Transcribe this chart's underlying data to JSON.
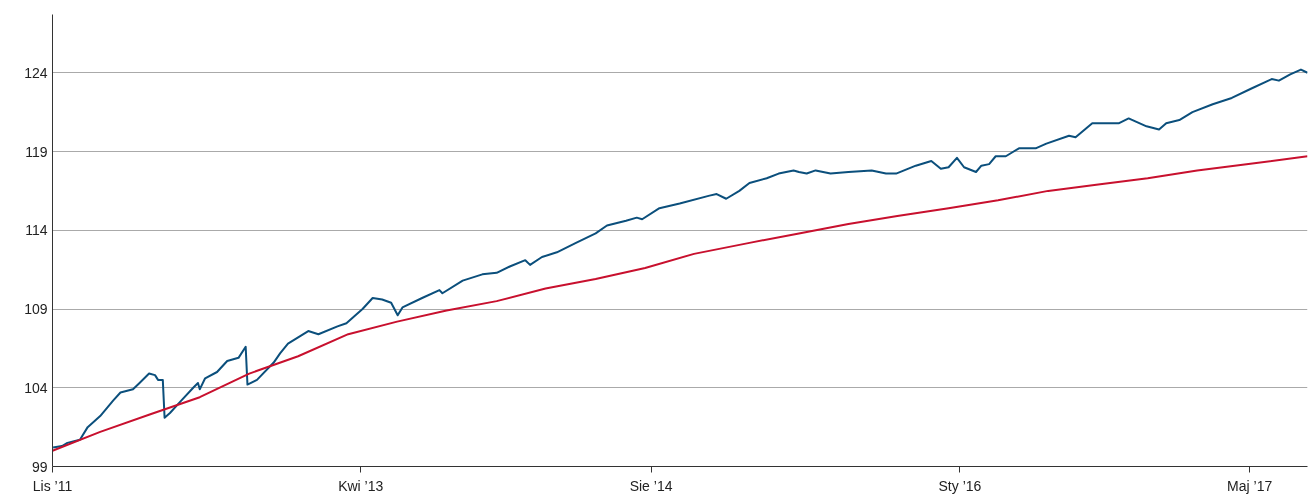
{
  "chart_data": {
    "type": "line",
    "xlim": [
      "2011-11-01",
      "2017-08-06"
    ],
    "ylim": [
      99,
      127.7
    ],
    "xticks": [
      {
        "value": "2011-11-01",
        "label": "Lis ’11"
      },
      {
        "value": "2013-04-01",
        "label": "Kwi ’13"
      },
      {
        "value": "2014-08-01",
        "label": "Sie ’14"
      },
      {
        "value": "2016-01-01",
        "label": "Sty ’16"
      },
      {
        "value": "2017-05-01",
        "label": "Maj ’17"
      }
    ],
    "yticks": [
      99,
      104,
      109,
      114,
      119,
      124
    ],
    "grid": "y",
    "marker": "none",
    "line_style": "solid",
    "series": [
      {
        "color": "#0b4f7c",
        "x": [
          "2011-11-02",
          "2011-11-17",
          "2011-11-26",
          "2011-12-17",
          "2011-12-30",
          "2012-01-20",
          "2012-02-11",
          "2012-02-23",
          "2012-03-15",
          "2012-03-26",
          "2012-04-11",
          "2012-04-21",
          "2012-04-26",
          "2012-05-04",
          "2012-05-07",
          "2012-05-16",
          "2012-06-02",
          "2012-06-24",
          "2012-07-02",
          "2012-07-05",
          "2012-07-14",
          "2012-08-03",
          "2012-08-20",
          "2012-09-08",
          "2012-09-20",
          "2012-09-23",
          "2012-10-09",
          "2012-11-06",
          "2012-11-17",
          "2012-11-30",
          "2012-12-17",
          "2013-01-03",
          "2013-01-20",
          "2013-02-21",
          "2013-03-08",
          "2013-04-04",
          "2013-04-21",
          "2013-05-07",
          "2013-05-22",
          "2013-06-02",
          "2013-06-10",
          "2013-07-13",
          "2013-08-11",
          "2013-08-16",
          "2013-09-19",
          "2013-10-22",
          "2013-11-15",
          "2013-12-07",
          "2014-01-02",
          "2014-01-10",
          "2014-01-30",
          "2014-02-24",
          "2014-03-28",
          "2014-04-30",
          "2014-05-19",
          "2014-06-20",
          "2014-07-08",
          "2014-07-17",
          "2014-08-15",
          "2014-09-18",
          "2014-11-07",
          "2014-11-19",
          "2014-12-05",
          "2014-12-27",
          "2015-01-13",
          "2015-02-11",
          "2015-03-03",
          "2015-03-28",
          "2015-04-06",
          "2015-04-19",
          "2015-05-04",
          "2015-05-29",
          "2015-06-28",
          "2015-08-06",
          "2015-08-30",
          "2015-09-16",
          "2015-10-19",
          "2015-11-14",
          "2015-11-30",
          "2015-12-13",
          "2015-12-27",
          "2016-01-08",
          "2016-01-28",
          "2016-02-06",
          "2016-02-19",
          "2016-03-01",
          "2016-03-18",
          "2016-04-09",
          "2016-05-07",
          "2016-05-25",
          "2016-07-02",
          "2016-07-13",
          "2016-08-10",
          "2016-09-24",
          "2016-10-10",
          "2016-11-09",
          "2016-11-30",
          "2016-12-12",
          "2017-01-03",
          "2017-01-25",
          "2017-02-28",
          "2017-04-01",
          "2017-05-04",
          "2017-06-07",
          "2017-06-19",
          "2017-07-08",
          "2017-07-26",
          "2017-08-06"
        ],
        "values": [
          100.2,
          100.3,
          100.5,
          100.7,
          101.5,
          102.2,
          103.2,
          103.7,
          103.9,
          104.3,
          104.9,
          104.8,
          104.5,
          104.5,
          102.1,
          102.4,
          103.1,
          104.0,
          104.3,
          103.9,
          104.6,
          105.0,
          105.7,
          105.9,
          106.6,
          104.2,
          104.5,
          105.6,
          106.2,
          106.8,
          107.2,
          107.6,
          107.4,
          107.9,
          108.1,
          109.0,
          109.7,
          109.6,
          109.4,
          108.6,
          109.1,
          109.7,
          110.2,
          110.0,
          110.8,
          111.2,
          111.3,
          111.7,
          112.1,
          111.8,
          112.3,
          112.6,
          113.2,
          113.8,
          114.3,
          114.6,
          114.8,
          114.7,
          115.4,
          115.7,
          116.2,
          116.3,
          116.0,
          116.5,
          117.0,
          117.3,
          117.6,
          117.8,
          117.7,
          117.6,
          117.8,
          117.6,
          117.7,
          117.8,
          117.6,
          117.6,
          118.1,
          118.4,
          117.9,
          118.0,
          118.6,
          118.0,
          117.7,
          118.1,
          118.2,
          118.7,
          118.7,
          119.2,
          119.2,
          119.5,
          120.0,
          119.9,
          120.8,
          120.8,
          121.1,
          120.6,
          120.4,
          120.8,
          121.0,
          121.5,
          122.0,
          122.4,
          123.0,
          123.6,
          123.5,
          123.9,
          124.2,
          124.0
        ]
      },
      {
        "color": "#c8102e",
        "x": [
          "2011-11-01",
          "2012-01-20",
          "2012-04-12",
          "2012-07-05",
          "2012-09-26",
          "2012-12-17",
          "2013-03-11",
          "2013-06-01",
          "2013-08-23",
          "2013-11-15",
          "2014-02-05",
          "2014-04-30",
          "2014-07-22",
          "2014-10-12",
          "2015-01-13",
          "2015-04-06",
          "2015-06-28",
          "2015-09-18",
          "2015-12-13",
          "2016-03-05",
          "2016-05-28",
          "2016-08-20",
          "2016-11-11",
          "2017-02-02",
          "2017-04-29",
          "2017-08-06"
        ],
        "values": [
          100.0,
          101.2,
          102.3,
          103.4,
          104.9,
          106.0,
          107.4,
          108.2,
          108.9,
          109.5,
          110.3,
          110.9,
          111.6,
          112.5,
          113.2,
          113.8,
          114.4,
          114.9,
          115.4,
          115.9,
          116.5,
          116.9,
          117.3,
          117.8,
          118.2,
          118.7
        ]
      }
    ]
  }
}
